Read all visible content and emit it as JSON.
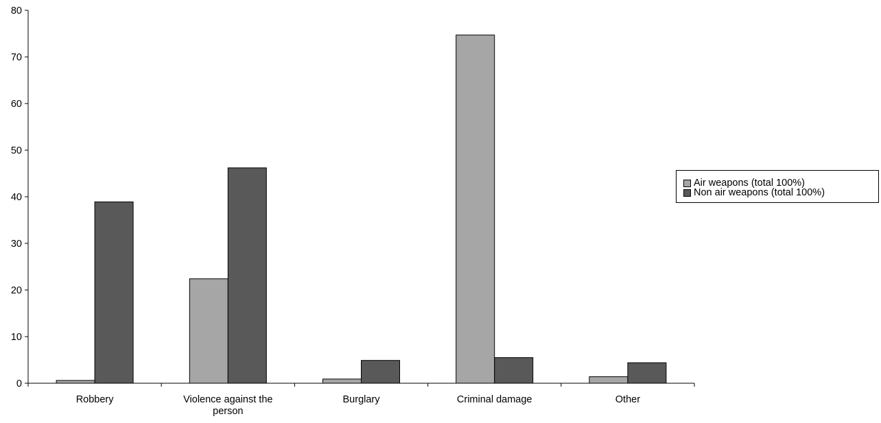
{
  "chart_data": {
    "type": "bar",
    "categories": [
      "Robbery",
      "Violence against the person",
      "Burglary",
      "Criminal damage",
      "Other"
    ],
    "category_lines": [
      [
        "Robbery"
      ],
      [
        "Violence against the",
        "person"
      ],
      [
        "Burglary"
      ],
      [
        "Criminal damage"
      ],
      [
        "Other"
      ]
    ],
    "series": [
      {
        "name": "Air weapons (total 100%)",
        "values": [
          0.6,
          22.4,
          0.9,
          74.7,
          1.4
        ],
        "color": "#a6a6a6"
      },
      {
        "name": "Non air weapons (total 100%)",
        "values": [
          38.9,
          46.2,
          4.9,
          5.5,
          4.4
        ],
        "color": "#595959"
      }
    ],
    "ylim": [
      0,
      80
    ],
    "yticks": [
      "0",
      "10",
      "20",
      "30",
      "40",
      "50",
      "60",
      "70",
      "80"
    ],
    "title": "",
    "xlabel": "",
    "ylabel": "",
    "grid": false,
    "legend_position": "right"
  }
}
